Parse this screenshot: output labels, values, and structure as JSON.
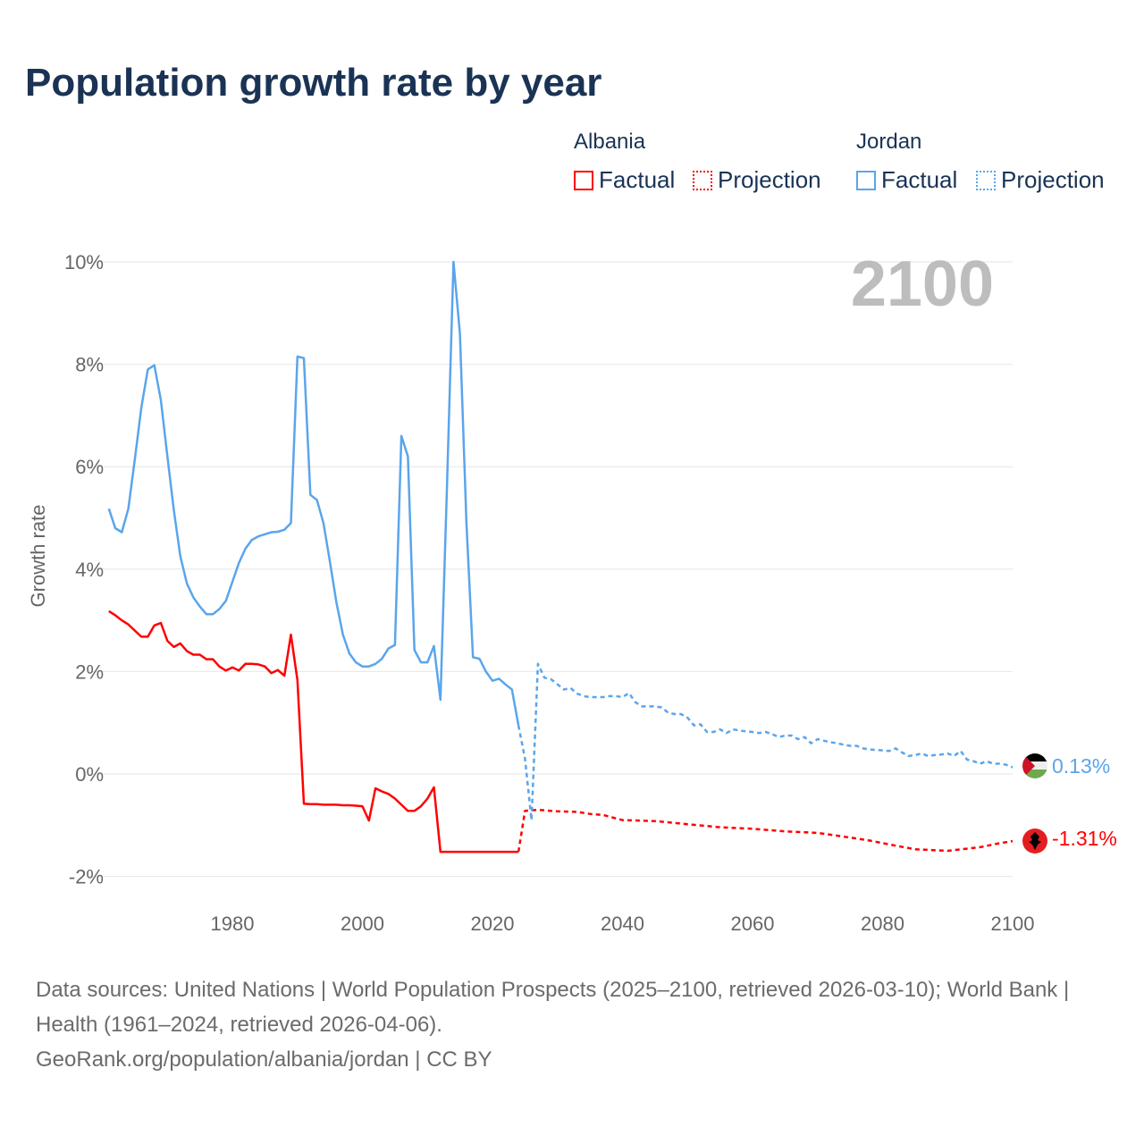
{
  "title": "Population growth rate by year",
  "legend": {
    "groups": [
      {
        "name": "Albania",
        "factual": "Factual",
        "projection": "Projection",
        "color": "#ff0000"
      },
      {
        "name": "Jordan",
        "factual": "Factual",
        "projection": "Projection",
        "color": "#5aa5ec"
      }
    ]
  },
  "year_label": "2100",
  "end_labels": {
    "jordan": "0.13%",
    "albania": "-1.31%"
  },
  "footer": {
    "sources": "Data sources: United Nations | World Population Prospects (2025–2100, retrieved 2026-03-10); World Bank | Health (1961–2024, retrieved 2026-04-06).",
    "credit": "GeoRank.org/population/albania/jordan | CC BY"
  },
  "chart_data": {
    "type": "line",
    "title": "Population growth rate by year",
    "xlabel": "",
    "ylabel": "Growth rate",
    "xlim": [
      1961,
      2100
    ],
    "ylim": [
      -2.3,
      10.3
    ],
    "xticks": [
      1980,
      2000,
      2020,
      2040,
      2060,
      2080,
      2100
    ],
    "xtick_labels": [
      "1980",
      "2000",
      "2020",
      "2040",
      "2060",
      "2080",
      "2100"
    ],
    "yticks": [
      -2,
      0,
      2,
      4,
      6,
      8,
      10
    ],
    "ytick_labels": [
      "-2%",
      "0%",
      "2%",
      "4%",
      "6%",
      "8%",
      "10%"
    ],
    "grid": true,
    "series": [
      {
        "name": "Albania Factual",
        "color": "#ff0000",
        "dashed": false,
        "x_start": 1961,
        "values": [
          3.18,
          3.1,
          3.0,
          2.92,
          2.8,
          2.68,
          2.68,
          2.9,
          2.95,
          2.6,
          2.48,
          2.55,
          2.4,
          2.33,
          2.33,
          2.24,
          2.24,
          2.1,
          2.02,
          2.08,
          2.02,
          2.15,
          2.15,
          2.14,
          2.1,
          1.97,
          2.03,
          1.92,
          2.72,
          1.83,
          -0.58,
          -0.59,
          -0.59,
          -0.6,
          -0.6,
          -0.6,
          -0.61,
          -0.61,
          -0.62,
          -0.63,
          -0.91,
          -0.28,
          -0.34,
          -0.39,
          -0.48,
          -0.6,
          -0.72,
          -0.72,
          -0.63,
          -0.48,
          -0.26,
          -1.52,
          -1.52,
          -1.52,
          -1.52,
          -1.52,
          -1.52,
          -1.52,
          -1.52,
          -1.52,
          -1.52,
          -1.52,
          -1.52,
          -1.52
        ]
      },
      {
        "name": "Albania Projection",
        "color": "#ff0000",
        "dashed": true,
        "x": [
          2024,
          2025,
          2027,
          2030,
          2033,
          2035,
          2037,
          2040,
          2045,
          2050,
          2055,
          2060,
          2065,
          2070,
          2075,
          2078,
          2082,
          2085,
          2090,
          2095,
          2098,
          2100
        ],
        "values": [
          -1.52,
          -0.72,
          -0.7,
          -0.73,
          -0.74,
          -0.78,
          -0.8,
          -0.9,
          -0.92,
          -0.98,
          -1.04,
          -1.07,
          -1.12,
          -1.15,
          -1.24,
          -1.3,
          -1.4,
          -1.47,
          -1.5,
          -1.43,
          -1.35,
          -1.31
        ]
      },
      {
        "name": "Jordan Factual",
        "color": "#5aa5ec",
        "dashed": false,
        "x_start": 1961,
        "values": [
          5.18,
          4.8,
          4.72,
          5.18,
          6.15,
          7.15,
          7.9,
          7.98,
          7.3,
          6.2,
          5.15,
          4.25,
          3.72,
          3.45,
          3.27,
          3.12,
          3.12,
          3.22,
          3.38,
          3.75,
          4.12,
          4.4,
          4.57,
          4.64,
          4.68,
          4.72,
          4.73,
          4.77,
          4.9,
          8.15,
          8.12,
          5.45,
          5.35,
          4.9,
          4.15,
          3.35,
          2.72,
          2.35,
          2.18,
          2.1,
          2.1,
          2.15,
          2.25,
          2.45,
          2.52,
          6.6,
          6.2,
          2.42,
          2.18,
          2.18,
          2.5,
          1.45,
          5.6,
          10.0,
          8.6,
          4.9,
          2.28,
          2.25,
          2.0,
          1.82,
          1.86,
          1.75,
          1.65,
          0.95
        ]
      },
      {
        "name": "Jordan Projection",
        "color": "#5aa5ec",
        "dashed": true,
        "x_start": 2024,
        "values": [
          0.95,
          0.3,
          -0.9,
          2.15,
          1.88,
          1.85,
          1.75,
          1.65,
          1.68,
          1.57,
          1.52,
          1.5,
          1.5,
          1.5,
          1.52,
          1.52,
          1.5,
          1.58,
          1.4,
          1.32,
          1.32,
          1.32,
          1.3,
          1.2,
          1.17,
          1.17,
          1.1,
          0.95,
          0.97,
          0.82,
          0.82,
          0.87,
          0.8,
          0.87,
          0.85,
          0.83,
          0.82,
          0.8,
          0.82,
          0.78,
          0.72,
          0.75,
          0.75,
          0.68,
          0.72,
          0.6,
          0.68,
          0.65,
          0.62,
          0.6,
          0.57,
          0.55,
          0.55,
          0.5,
          0.48,
          0.47,
          0.46,
          0.45,
          0.5,
          0.42,
          0.35,
          0.37,
          0.4,
          0.35,
          0.37,
          0.38,
          0.4,
          0.35,
          0.45,
          0.28,
          0.25,
          0.2,
          0.25,
          0.2,
          0.2,
          0.18,
          0.13
        ]
      }
    ]
  }
}
